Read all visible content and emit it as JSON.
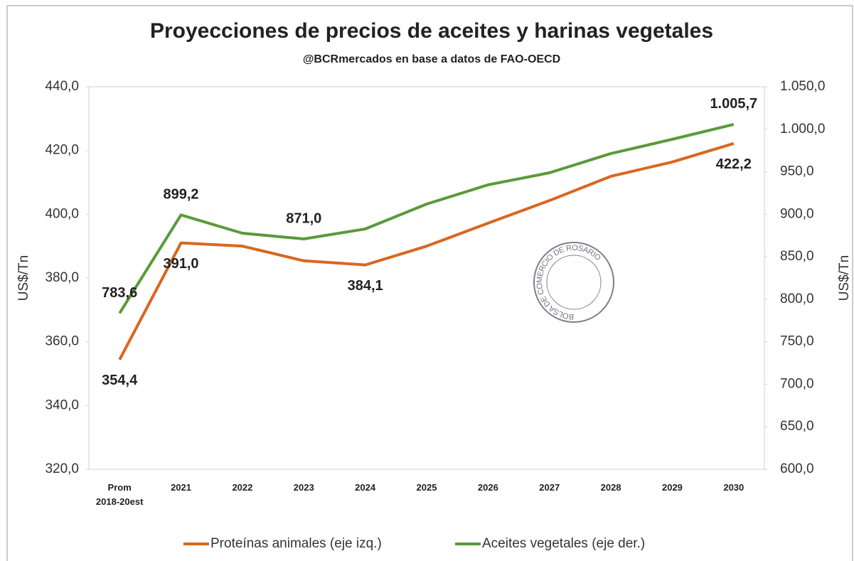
{
  "chart_data": {
    "type": "line",
    "title": "Proyecciones de precios de aceites y harinas vegetales",
    "subtitle": "@BCRmercados  en base a datos de FAO-OECD",
    "watermark": "BOLSA DE COMERCIO DE ROSARIO",
    "categories": [
      "Prom 2018-20est",
      "2021",
      "2022",
      "2023",
      "2024",
      "2025",
      "2026",
      "2027",
      "2028",
      "2029",
      "2030"
    ],
    "series": [
      {
        "name": "Proteínas animales (eje izq.)",
        "color": "#d9671e",
        "values": [
          354.4,
          391.0,
          390.0,
          385.4,
          384.1,
          390.0,
          397.2,
          404.3,
          411.9,
          416.4,
          422.2
        ],
        "value_labels": [
          "354,4",
          "391,0",
          null,
          null,
          "384,1",
          null,
          null,
          null,
          null,
          null,
          "422,2"
        ]
      },
      {
        "name": "Aceites vegetales (eje der.)",
        "color": "#5a9a3a",
        "axis": "y2",
        "values": [
          783.6,
          899.2,
          877.7,
          871.0,
          882.7,
          912.0,
          934.6,
          948.8,
          971.4,
          988.2,
          1005.7
        ],
        "value_labels": [
          "783,6",
          "899,2",
          null,
          "871,0",
          null,
          null,
          null,
          null,
          null,
          null,
          "1.005,7"
        ]
      }
    ],
    "ylabel": "US$/Tn",
    "y2label": "US$/Tn",
    "ylim": [
      320,
      440
    ],
    "yticks": [
      {
        "value": 320,
        "label": "320,0"
      },
      {
        "value": 340,
        "label": "340,0"
      },
      {
        "value": 360,
        "label": "360,0"
      },
      {
        "value": 380,
        "label": "380,0"
      },
      {
        "value": 400,
        "label": "400,0"
      },
      {
        "value": 420,
        "label": "420,0"
      },
      {
        "value": 440,
        "label": "440,0"
      }
    ],
    "y2lim": [
      600,
      1050
    ],
    "y2ticks": [
      {
        "value": 600,
        "label": "600,0"
      },
      {
        "value": 650,
        "label": "650,0"
      },
      {
        "value": 700,
        "label": "700,0"
      },
      {
        "value": 750,
        "label": "750,0"
      },
      {
        "value": 800,
        "label": "800,0"
      },
      {
        "value": 850,
        "label": "850,0"
      },
      {
        "value": 900,
        "label": "900,0"
      },
      {
        "value": 950,
        "label": "950,0"
      },
      {
        "value": 1000,
        "label": "1.000,0"
      },
      {
        "value": 1050,
        "label": "1.050,0"
      }
    ],
    "grid": false,
    "legend": "bottom"
  }
}
